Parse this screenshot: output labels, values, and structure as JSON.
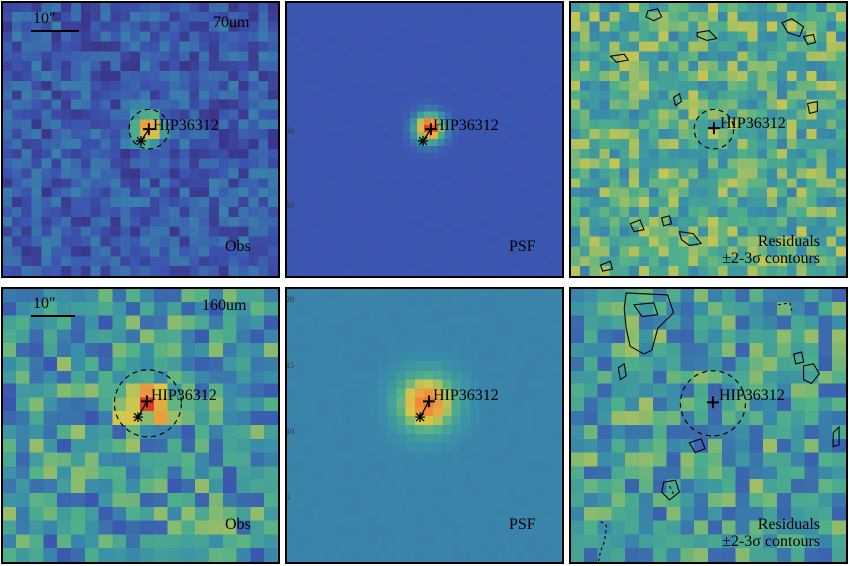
{
  "figure": {
    "source_name": "HIP36312",
    "scale_bar": "10\"",
    "rows": [
      {
        "band": "70um",
        "panels": [
          {
            "kind": "obs",
            "label": "Obs",
            "circle_r_frac": 0.075
          },
          {
            "kind": "psf",
            "label": "PSF"
          },
          {
            "kind": "res",
            "label": "Residuals",
            "label2": "±2-3σ contours",
            "circle_r_frac": 0.075
          }
        ]
      },
      {
        "band": "160um",
        "panels": [
          {
            "kind": "obs",
            "label": "Obs",
            "circle_r_frac": 0.125
          },
          {
            "kind": "psf",
            "label": "PSF"
          },
          {
            "kind": "res",
            "label": "Residuals",
            "label2": "±2-3σ contours",
            "circle_r_frac": 0.125
          }
        ]
      }
    ],
    "tick_labels": {
      "row1_y": [
        "30",
        "20"
      ],
      "row2_y": [
        "20",
        "15",
        "10",
        "5"
      ]
    },
    "colors": {
      "dark": "#3a1f6e",
      "blue": "#3b55b0",
      "teal": "#3a8fa8",
      "green": "#4fb08a",
      "yellow": "#d8c84a",
      "orange": "#f08a3a",
      "red": "#e23a22"
    }
  }
}
